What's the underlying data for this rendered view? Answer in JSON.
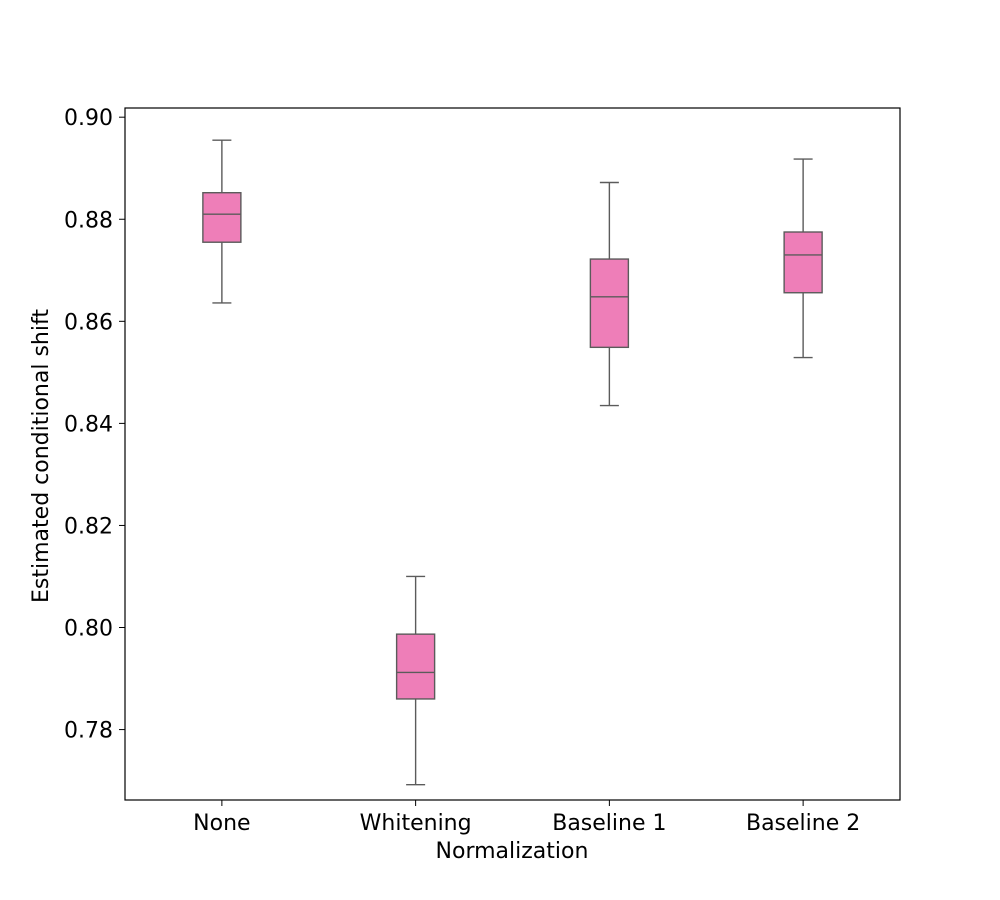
{
  "chart_data": {
    "type": "box",
    "title": "",
    "xlabel": "Normalization",
    "ylabel": "Estimated conditional shift",
    "ylim": [
      0.7662,
      0.9018
    ],
    "yticks": [
      0.78,
      0.8,
      0.82,
      0.84,
      0.86,
      0.88,
      0.9
    ],
    "ytick_labels": [
      "0.78",
      "0.80",
      "0.82",
      "0.84",
      "0.86",
      "0.88",
      "0.90"
    ],
    "categories": [
      "None",
      "Whitening",
      "Baseline 1",
      "Baseline 2"
    ],
    "boxes": [
      {
        "category": "None",
        "whisker_low": 0.8636,
        "q1": 0.8755,
        "median": 0.881,
        "q3": 0.8852,
        "whisker_high": 0.8955
      },
      {
        "category": "Whitening",
        "whisker_low": 0.7692,
        "q1": 0.786,
        "median": 0.7912,
        "q3": 0.7987,
        "whisker_high": 0.81
      },
      {
        "category": "Baseline 1",
        "whisker_low": 0.8435,
        "q1": 0.8549,
        "median": 0.8648,
        "q3": 0.8722,
        "whisker_high": 0.8872
      },
      {
        "category": "Baseline 2",
        "whisker_low": 0.8529,
        "q1": 0.8656,
        "median": 0.873,
        "q3": 0.8775,
        "whisker_high": 0.8918
      }
    ],
    "box_color": "#ee7eb8",
    "line_color": "#5b5b5b",
    "grid": false,
    "legend": "none"
  }
}
